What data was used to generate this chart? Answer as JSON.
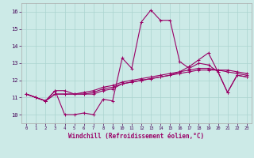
{
  "xlabel": "Windchill (Refroidissement éolien,°C)",
  "xlim": [
    -0.5,
    23.5
  ],
  "ylim": [
    9.5,
    16.5
  ],
  "yticks": [
    10,
    11,
    12,
    13,
    14,
    15,
    16
  ],
  "xticks": [
    0,
    1,
    2,
    3,
    4,
    5,
    6,
    7,
    8,
    9,
    10,
    11,
    12,
    13,
    14,
    15,
    16,
    17,
    18,
    19,
    20,
    21,
    22,
    23
  ],
  "bg_color": "#cceae7",
  "grid_color": "#aad4d0",
  "line_color": "#990066",
  "series": [
    [
      11.2,
      11.0,
      10.8,
      11.4,
      10.0,
      10.0,
      10.1,
      10.0,
      10.9,
      10.8,
      13.3,
      12.7,
      15.4,
      16.1,
      15.5,
      15.5,
      13.1,
      12.7,
      13.0,
      12.9,
      12.5,
      11.3,
      12.3,
      12.2
    ],
    [
      11.2,
      11.0,
      10.8,
      11.4,
      11.4,
      11.2,
      11.2,
      11.2,
      11.4,
      11.5,
      11.8,
      11.9,
      12.0,
      12.1,
      12.2,
      12.3,
      12.4,
      12.5,
      12.6,
      12.6,
      12.6,
      12.6,
      12.5,
      12.4
    ],
    [
      11.2,
      11.0,
      10.8,
      11.2,
      11.2,
      11.2,
      11.3,
      11.4,
      11.6,
      11.7,
      11.9,
      12.0,
      12.1,
      12.2,
      12.3,
      12.4,
      12.5,
      12.6,
      12.7,
      12.7,
      12.6,
      12.5,
      12.4,
      12.3
    ],
    [
      11.2,
      11.0,
      10.8,
      11.2,
      11.2,
      11.2,
      11.2,
      11.3,
      11.5,
      11.6,
      11.8,
      11.9,
      12.0,
      12.1,
      12.2,
      12.3,
      12.5,
      12.8,
      13.2,
      13.6,
      12.5,
      11.3,
      12.3,
      12.2
    ]
  ]
}
